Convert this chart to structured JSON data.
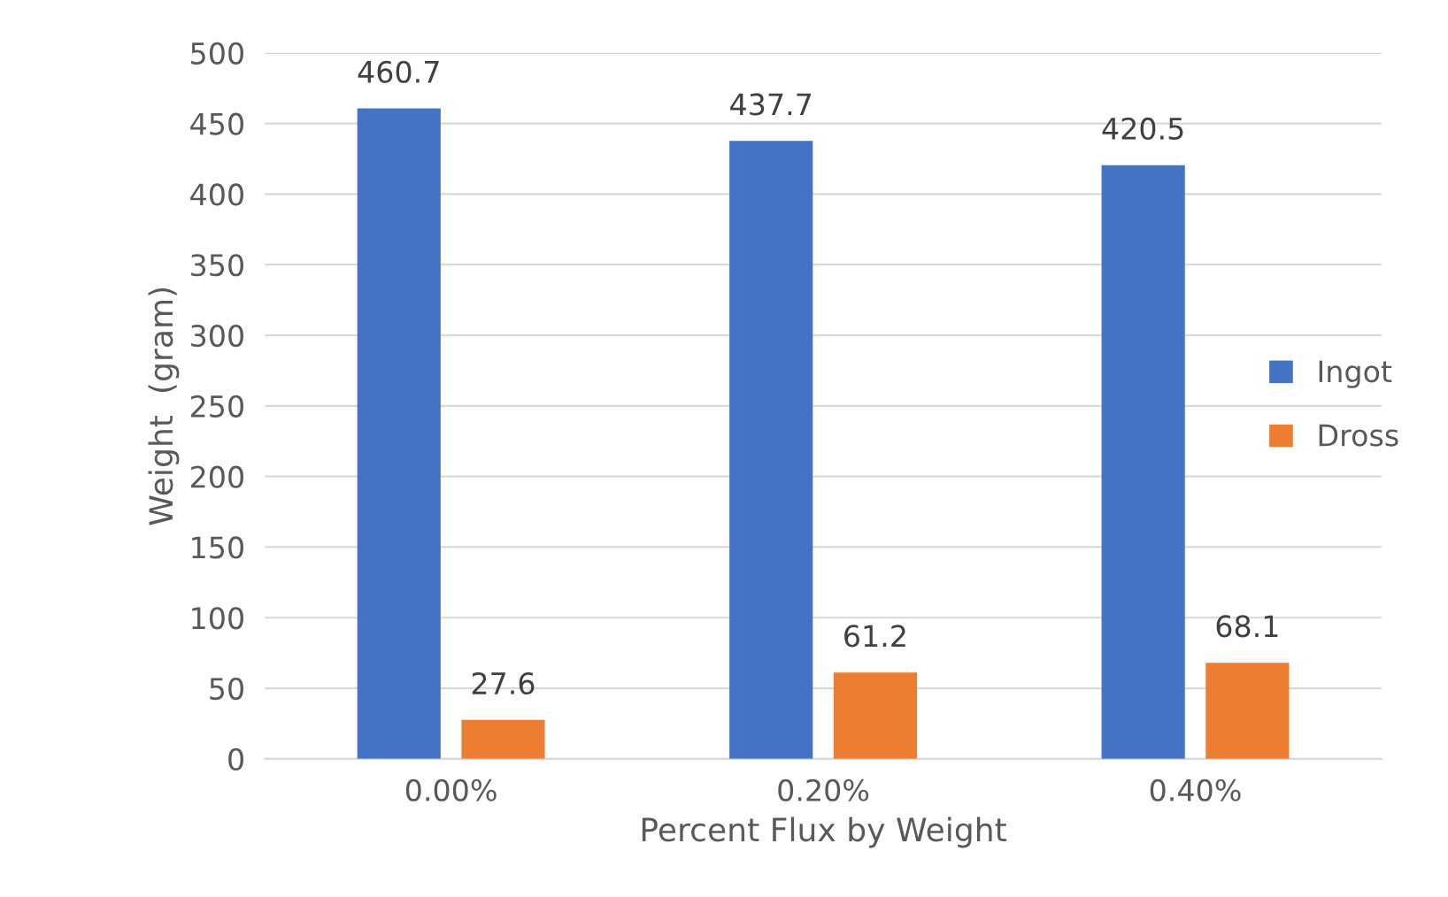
{
  "chart_data": {
    "type": "bar",
    "xlabel": "Percent Flux by Weight",
    "ylabel": "Weight  (gram)",
    "categories": [
      "0.00%",
      "0.20%",
      "0.40%"
    ],
    "series": [
      {
        "name": "Ingot",
        "color": "#4472c4",
        "values": [
          460.7,
          437.7,
          420.5
        ]
      },
      {
        "name": "Dross",
        "color": "#ed7d31",
        "values": [
          27.6,
          61.2,
          68.1
        ]
      }
    ],
    "ylim": [
      0,
      500
    ],
    "yticks": [
      0,
      50,
      100,
      150,
      200,
      250,
      300,
      350,
      400,
      450,
      500
    ],
    "grid": "y",
    "legend": "right",
    "data_labels": true
  }
}
